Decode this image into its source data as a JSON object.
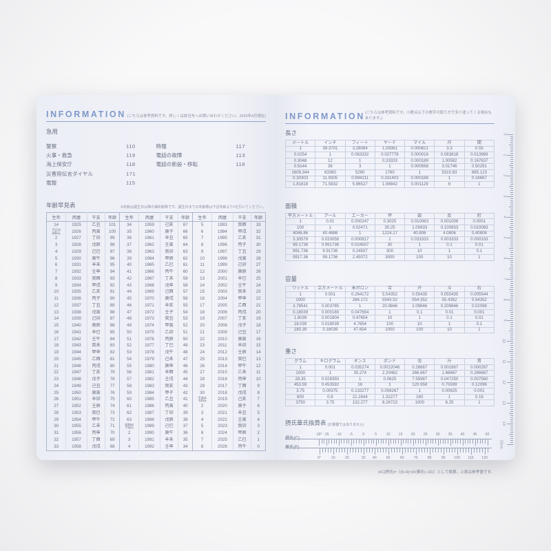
{
  "page_left": {
    "header": {
      "title": "INFORMATION",
      "note": "(こちらは参考資料です。詳しくは該当先へお問い合わせください。2025年4月現在)"
    },
    "emergency": {
      "title": "急用",
      "items_left": [
        [
          "警察",
          "110"
        ],
        [
          "火事・救急",
          "119"
        ],
        [
          "海上保安庁",
          "118"
        ],
        [
          "災害用伝言ダイヤル",
          "171"
        ],
        [
          "電報",
          "115"
        ]
      ],
      "items_right": [
        [
          "時報",
          "117"
        ],
        [
          "電話の故障",
          "113"
        ],
        [
          "電話の新設・移転",
          "116"
        ]
      ]
    },
    "age_table": {
      "title": "年齢早見表",
      "note": "※年齢は誕生日以降の満年齢数です。誕生日までの年齢数は下記年齢より1を引いてください。",
      "columns": [
        "生年",
        "西暦",
        "干支",
        "年齢",
        "生年",
        "西暦",
        "干支",
        "年齢",
        "生年",
        "西暦",
        "干支",
        "年齢"
      ],
      "rows": [
        [
          "14",
          "1925",
          "乙丑",
          "101",
          "34",
          "1959",
          "己亥",
          "67",
          "5",
          "1993",
          "癸酉",
          "33"
        ],
        [
          "大正15・昭和元",
          "1926",
          "丙寅",
          "100",
          "35",
          "1960",
          "庚子",
          "66",
          "6",
          "1994",
          "甲戌",
          "32"
        ],
        [
          "2",
          "1927",
          "丁卯",
          "99",
          "36",
          "1961",
          "辛丑",
          "65",
          "7",
          "1995",
          "乙亥",
          "31"
        ],
        [
          "3",
          "1928",
          "戊辰",
          "98",
          "37",
          "1962",
          "壬寅",
          "64",
          "8",
          "1996",
          "丙子",
          "30"
        ],
        [
          "4",
          "1929",
          "己巳",
          "97",
          "38",
          "1963",
          "癸卯",
          "63",
          "9",
          "1997",
          "丁丑",
          "29"
        ],
        [
          "5",
          "1930",
          "庚午",
          "96",
          "39",
          "1964",
          "甲辰",
          "62",
          "10",
          "1998",
          "戊寅",
          "28"
        ],
        [
          "6",
          "1931",
          "辛未",
          "95",
          "40",
          "1965",
          "乙巳",
          "61",
          "11",
          "1999",
          "己卯",
          "27"
        ],
        [
          "7",
          "1932",
          "壬申",
          "94",
          "41",
          "1966",
          "丙午",
          "60",
          "12",
          "2000",
          "庚辰",
          "26"
        ],
        [
          "8",
          "1933",
          "癸酉",
          "93",
          "42",
          "1967",
          "丁未",
          "59",
          "13",
          "2001",
          "辛巳",
          "25"
        ],
        [
          "9",
          "1934",
          "甲戌",
          "92",
          "43",
          "1968",
          "戊申",
          "58",
          "14",
          "2002",
          "壬午",
          "24"
        ],
        [
          "10",
          "1935",
          "乙亥",
          "91",
          "44",
          "1969",
          "己酉",
          "57",
          "15",
          "2003",
          "癸未",
          "23"
        ],
        [
          "11",
          "1936",
          "丙子",
          "90",
          "45",
          "1970",
          "庚戌",
          "56",
          "16",
          "2004",
          "甲申",
          "22"
        ],
        [
          "12",
          "1937",
          "丁丑",
          "89",
          "46",
          "1971",
          "辛亥",
          "55",
          "17",
          "2005",
          "乙酉",
          "21"
        ],
        [
          "13",
          "1938",
          "戊寅",
          "88",
          "47",
          "1972",
          "壬子",
          "54",
          "18",
          "2006",
          "丙戌",
          "20"
        ],
        [
          "14",
          "1939",
          "己卯",
          "87",
          "48",
          "1973",
          "癸丑",
          "53",
          "19",
          "2007",
          "丁亥",
          "19"
        ],
        [
          "15",
          "1940",
          "庚辰",
          "86",
          "49",
          "1974",
          "甲寅",
          "52",
          "20",
          "2008",
          "戊子",
          "18"
        ],
        [
          "16",
          "1941",
          "辛巳",
          "85",
          "50",
          "1975",
          "乙卯",
          "51",
          "21",
          "2009",
          "己丑",
          "17"
        ],
        [
          "17",
          "1942",
          "壬午",
          "84",
          "51",
          "1976",
          "丙辰",
          "50",
          "22",
          "2010",
          "庚寅",
          "16"
        ],
        [
          "18",
          "1943",
          "癸未",
          "83",
          "52",
          "1977",
          "丁巳",
          "49",
          "23",
          "2011",
          "辛卯",
          "15"
        ],
        [
          "19",
          "1944",
          "甲申",
          "82",
          "53",
          "1978",
          "戊午",
          "48",
          "24",
          "2012",
          "壬辰",
          "14"
        ],
        [
          "20",
          "1945",
          "乙酉",
          "81",
          "54",
          "1979",
          "己未",
          "47",
          "25",
          "2013",
          "癸巳",
          "13"
        ],
        [
          "21",
          "1946",
          "丙戌",
          "80",
          "55",
          "1980",
          "庚申",
          "46",
          "26",
          "2014",
          "甲午",
          "12"
        ],
        [
          "22",
          "1947",
          "丁亥",
          "79",
          "56",
          "1981",
          "辛酉",
          "45",
          "27",
          "2015",
          "乙未",
          "11"
        ],
        [
          "23",
          "1948",
          "戊子",
          "78",
          "57",
          "1982",
          "壬戌",
          "44",
          "28",
          "2016",
          "丙申",
          "10"
        ],
        [
          "24",
          "1949",
          "己丑",
          "77",
          "58",
          "1983",
          "癸亥",
          "43",
          "29",
          "2017",
          "丁酉",
          "9"
        ],
        [
          "25",
          "1950",
          "庚寅",
          "76",
          "59",
          "1984",
          "甲子",
          "42",
          "30",
          "2018",
          "戊戌",
          "8"
        ],
        [
          "26",
          "1951",
          "辛卯",
          "75",
          "60",
          "1985",
          "乙丑",
          "41",
          "平成31・令和元",
          "2019",
          "己亥",
          "7"
        ],
        [
          "27",
          "1952",
          "壬辰",
          "74",
          "61",
          "1986",
          "丙寅",
          "40",
          "2",
          "2020",
          "庚子",
          "6"
        ],
        [
          "28",
          "1953",
          "癸巳",
          "73",
          "62",
          "1987",
          "丁卯",
          "39",
          "3",
          "2021",
          "辛丑",
          "5"
        ],
        [
          "29",
          "1954",
          "甲午",
          "72",
          "63",
          "1988",
          "戊辰",
          "38",
          "4",
          "2022",
          "壬寅",
          "4"
        ],
        [
          "30",
          "1955",
          "乙未",
          "71",
          "昭和64・平成元",
          "1989",
          "己巳",
          "37",
          "5",
          "2023",
          "癸卯",
          "3"
        ],
        [
          "31",
          "1956",
          "丙申",
          "70",
          "2",
          "1990",
          "庚午",
          "36",
          "6",
          "2024",
          "甲辰",
          "2"
        ],
        [
          "32",
          "1957",
          "丁酉",
          "69",
          "3",
          "1991",
          "辛未",
          "35",
          "7",
          "2025",
          "乙巳",
          "1"
        ],
        [
          "33",
          "1958",
          "戊戌",
          "68",
          "4",
          "1992",
          "壬申",
          "34",
          "8",
          "2026",
          "丙午",
          "0"
        ]
      ]
    }
  },
  "page_right": {
    "header": {
      "title": "INFORMATION",
      "note": "(こちらは参考資料です。小数点以下の数字の取り方で多少違ってくる場合もあります。)"
    },
    "length": {
      "title": "長さ",
      "columns": [
        "メートル",
        "インチ",
        "フィート",
        "ヤード",
        "マイル",
        "尺",
        "間"
      ],
      "rows": [
        [
          "1",
          "39.3701",
          "3.28084",
          "1.09361",
          "0.000621",
          "3.3",
          "0.55"
        ],
        [
          "0.0254",
          "1",
          "0.083332",
          "0.027778",
          "0.000016",
          "0.083818",
          "0.013969"
        ],
        [
          "0.3048",
          "12",
          "1",
          "0.33333",
          "0.000189",
          "1.00582",
          "0.167637"
        ],
        [
          "0.9144",
          "36",
          "3",
          "1",
          "0.000568",
          "3.01746",
          "0.50291"
        ],
        [
          "1609.344",
          "63360",
          "5280",
          "1760",
          "1",
          "5310.83",
          "885.123"
        ],
        [
          "0.30303",
          "11.9305",
          "0.994211",
          "0.331403",
          "0.000188",
          "1",
          "0.16667"
        ],
        [
          "1.81818",
          "71.5832",
          "5.96527",
          "1.98842",
          "0.001129",
          "6",
          "1"
        ]
      ]
    },
    "area": {
      "title": "面積",
      "columns": [
        "平方メートル",
        "アール",
        "エーカー",
        "坪",
        "畝",
        "反",
        "町"
      ],
      "rows": [
        [
          "1",
          "0.01",
          "0.000247",
          "0.3025",
          "0.010083",
          "0.001008",
          "0.0001"
        ],
        [
          "100",
          "1",
          "0.02471",
          "30.25",
          "1.00833",
          "0.100833",
          "0.010083"
        ],
        [
          "4046.86",
          "40.4686",
          "1",
          "1224.17",
          "40.806",
          "4.0806",
          "0.40806"
        ],
        [
          "3.30579",
          "0.033058",
          "0.000817",
          "1",
          "0.033333",
          "0.003333",
          "0.000333"
        ],
        [
          "99.1736",
          "0.991736",
          "0.024507",
          "30",
          "1",
          "0.1",
          "0.01"
        ],
        [
          "991.736",
          "9.91736",
          "0.24507",
          "300",
          "10",
          "1",
          "0.1"
        ],
        [
          "9917.36",
          "99.1736",
          "2.45072",
          "3000",
          "100",
          "10",
          "1"
        ]
      ]
    },
    "capacity": {
      "title": "容量",
      "columns": [
        "リットル",
        "立方メートル",
        "米ガロン",
        "合",
        "升",
        "斗",
        "石"
      ],
      "rows": [
        [
          "1",
          "0.001",
          "0.264172",
          "5.54352",
          "0.55435",
          "0.055435",
          "0.005544"
        ],
        [
          "1000",
          "1",
          "264.172",
          "5543.52",
          "554.352",
          "55.4352",
          "5.54352"
        ],
        [
          "3.78541",
          "0.003785",
          "1",
          "20.9846",
          "2.09846",
          "0.209846",
          "0.02098"
        ],
        [
          "0.18039",
          "0.000180",
          "0.047654",
          "1",
          "0.1",
          "0.01",
          "0.001"
        ],
        [
          "1.8039",
          "0.001804",
          "0.47654",
          "10",
          "1",
          "0.1",
          "0.01"
        ],
        [
          "18.039",
          "0.018039",
          "4.7654",
          "100",
          "10",
          "1",
          "0.1"
        ],
        [
          "180.39",
          "0.18039",
          "47.654",
          "1000",
          "100",
          "10",
          "1"
        ]
      ]
    },
    "weight": {
      "title": "重さ",
      "columns": [
        "グラム",
        "キログラム",
        "オンス",
        "ポンド",
        "匁",
        "斤",
        "貫"
      ],
      "rows": [
        [
          "1",
          "0.001",
          "0.035274",
          "0.0022046",
          "0.26667",
          "0.001667",
          "0.000267"
        ],
        [
          "1000",
          "1",
          "35.274",
          "2.20462",
          "266.667",
          "1.66667",
          "0.266667"
        ],
        [
          "28.35",
          "0.028350",
          "1",
          "0.0625",
          "7.55987",
          "0.047250",
          "0.007560"
        ],
        [
          "453.59",
          "0.453592",
          "16",
          "1",
          "120.958",
          "0.75599",
          "0.12096"
        ],
        [
          "3.75",
          "0.00375",
          "0.132277",
          "0.008267",
          "1",
          "0.00625",
          "0.001"
        ],
        [
          "600",
          "0.6",
          "21.1644",
          "1.32277",
          "160",
          "1",
          "0.16"
        ],
        [
          "3750",
          "3.75",
          "132.277",
          "8.26723",
          "1000",
          "6.25",
          "1"
        ]
      ]
    },
    "temp": {
      "title": "摂氏華氏換算表",
      "title_note": "(計量器ではありません)",
      "celsius_label": "摂氏(C)",
      "fahrenheit_label": "華氏(F)",
      "celsius_ticks": [
        {
          "v": -18,
          "t": "-18°"
        },
        {
          "v": -15,
          "t": "-15"
        },
        {
          "v": -10,
          "t": "-10"
        },
        {
          "v": -5,
          "t": "-5"
        },
        {
          "v": 0,
          "t": "0"
        },
        {
          "v": 5,
          "t": "5"
        },
        {
          "v": 10,
          "t": "10"
        },
        {
          "v": 15,
          "t": "15"
        },
        {
          "v": 20,
          "t": "20"
        },
        {
          "v": 25,
          "t": "25"
        },
        {
          "v": 30,
          "t": "30"
        },
        {
          "v": 35,
          "t": "35"
        },
        {
          "v": 40,
          "t": "40"
        },
        {
          "v": 45,
          "t": "45"
        },
        {
          "v": 50,
          "t": "50"
        }
      ],
      "fahrenheit_ticks": [
        {
          "v": 0,
          "t": "0°"
        },
        {
          "v": 10,
          "t": "10"
        },
        {
          "v": 20,
          "t": "20"
        },
        {
          "v": 32,
          "t": "32"
        },
        {
          "v": 40,
          "t": "40"
        },
        {
          "v": 50,
          "t": "50"
        },
        {
          "v": 60,
          "t": "60"
        },
        {
          "v": 70,
          "t": "70"
        },
        {
          "v": 80,
          "t": "80"
        },
        {
          "v": 90,
          "t": "90"
        },
        {
          "v": 100,
          "t": "100"
        },
        {
          "v": 110,
          "t": "110"
        },
        {
          "v": 120,
          "t": "120"
        }
      ],
      "formula_note": "※C(摂氏)=〔(5÷9)×(F(華氏)−32)〕として換算。上表は参考値です。"
    },
    "ruler": {
      "numbers": [
        "0",
        "1",
        "2",
        "3",
        "4",
        "5",
        "6",
        "7",
        "8",
        "9",
        "10",
        "11",
        "12",
        "13",
        "14",
        "15cm"
      ]
    }
  }
}
